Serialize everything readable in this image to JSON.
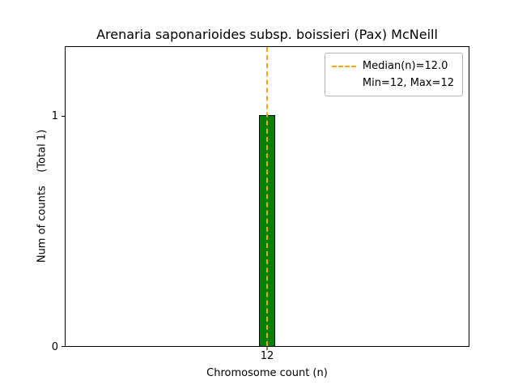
{
  "chart_data": {
    "type": "bar",
    "title": "Arenaria saponarioides subsp. boissieri (Pax) McNeill",
    "categories": [
      "12"
    ],
    "values": [
      1
    ],
    "xlabel": "Chromosome count (n)",
    "ylabel": "Num of counts    (Total 1)",
    "ylim": [
      0,
      1.3
    ],
    "yticks": [
      "0",
      "1"
    ],
    "ytick_values": [
      0,
      1
    ],
    "xticks": [
      "12"
    ],
    "grid": false,
    "bar_color": "#008000",
    "bar_edge_color": "#000000",
    "median_line": {
      "x": 12.0,
      "color": "#FFA500",
      "style": "dashed"
    },
    "legend": {
      "position": "upper right",
      "entries": [
        {
          "label": "Median(n)=12.0",
          "handle": "dashed-line",
          "color": "#FFA500"
        },
        {
          "label": "Min=12, Max=12",
          "handle": "none"
        }
      ]
    }
  }
}
